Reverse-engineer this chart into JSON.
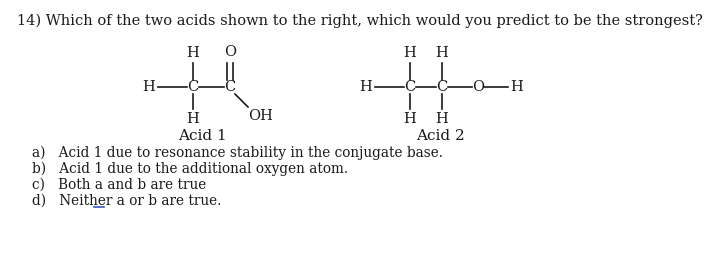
{
  "title": "14) Which of the two acids shown to the right, which would you predict to be the strongest?",
  "title_fontsize": 10.5,
  "answer_a": "a)   Acid 1 due to resonance stability in the conjugate base.",
  "answer_b": "b)   Acid 1 due to the additional oxygen atom.",
  "answer_c": "c)   Both a and b are true",
  "answer_d": "d)   Neither a or b are true.",
  "acid1_label": "Acid 1",
  "acid2_label": "Acid 2",
  "bg_color": "#ffffff",
  "text_color": "#1a1a1a",
  "answer_fontsize": 9.8,
  "struct_fontsize": 10.5,
  "label_fontsize": 11
}
